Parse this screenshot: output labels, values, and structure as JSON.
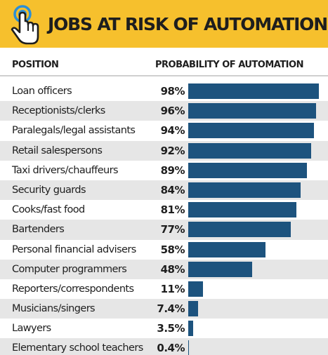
{
  "header": {
    "title": "JOBS AT RISK OF AUTOMATION",
    "icon": "pointing-hand-tap-icon"
  },
  "columns": {
    "position": "POSITION",
    "probability": "PROBABILITY OF AUTOMATION"
  },
  "colors": {
    "header_bg": "#f6c02d",
    "bar": "#1d537e",
    "row_shade": "#e6e6e6",
    "icon_ring": "#2b8fd6",
    "text": "#1e1e1e"
  },
  "chart_data": {
    "type": "bar",
    "orientation": "horizontal",
    "xlim": [
      0,
      100
    ],
    "categories": [
      "Loan officers",
      "Receptionists/clerks",
      "Paralegals/legal assistants",
      "Retail salespersons",
      "Taxi drivers/chauffeurs",
      "Security guards",
      "Cooks/fast food",
      "Bartenders",
      "Personal financial advisers",
      "Computer programmers",
      "Reporters/correspondents",
      "Musicians/singers",
      "Lawyers",
      "Elementary school teachers"
    ],
    "values": [
      98,
      96,
      94,
      92,
      89,
      84,
      81,
      77,
      58,
      48,
      11,
      7.4,
      3.5,
      0.4
    ],
    "value_labels": [
      "98%",
      "96%",
      "94%",
      "92%",
      "89%",
      "84%",
      "81%",
      "77%",
      "58%",
      "48%",
      "11%",
      "7.4%",
      "3.5%",
      "0.4%"
    ]
  }
}
